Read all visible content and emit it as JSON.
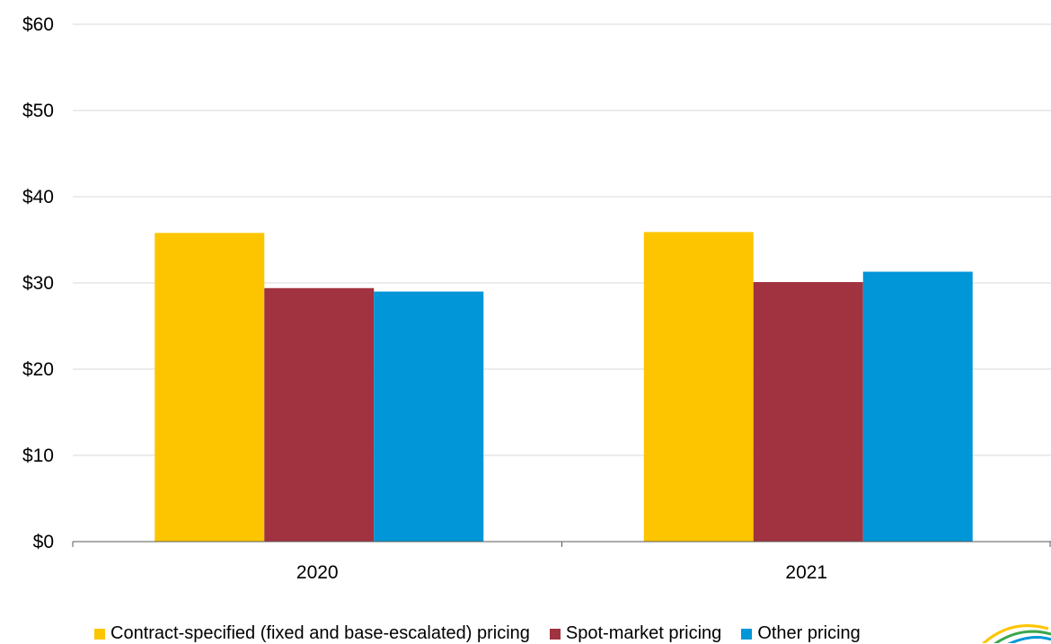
{
  "chart_data": {
    "type": "bar",
    "categories": [
      "2020",
      "2021"
    ],
    "series": [
      {
        "name": "Contract-specified (fixed and base-escalated) pricing",
        "color": "#FDC500",
        "values": [
          35.8,
          35.9
        ]
      },
      {
        "name": "Spot-market pricing",
        "color": "#A1323F",
        "values": [
          29.4,
          30.1
        ]
      },
      {
        "name": "Other pricing",
        "color": "#0096D7",
        "values": [
          29.0,
          31.3
        ]
      }
    ],
    "yticks": [
      "$0",
      "$10",
      "$20",
      "$30",
      "$40",
      "$50",
      "$60"
    ],
    "ylim": [
      0,
      60
    ],
    "grid": true,
    "legend_position": "bottom"
  }
}
